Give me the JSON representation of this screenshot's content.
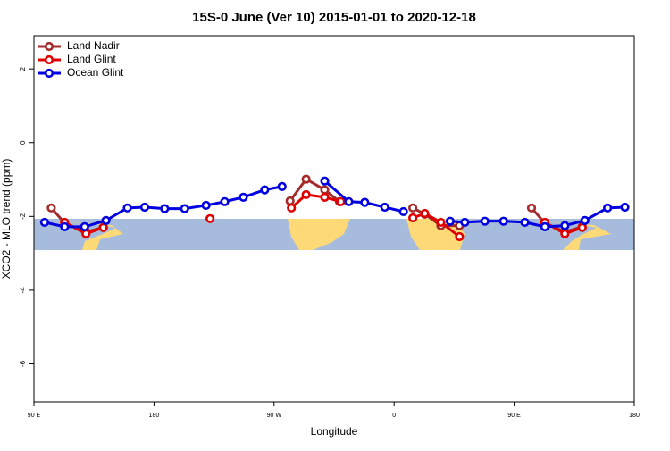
{
  "chart_data": {
    "type": "line",
    "title": "15S-0 June (Ver 10)   2015-01-01 to 2020-12-18",
    "x_label": "Longitude",
    "y_label": "XCO2 - MLO trend (ppm)",
    "xlim": [
      90,
      540
    ],
    "ylim": [
      -7.03,
      2.9
    ],
    "xticks": [
      {
        "value": 90,
        "label": "90 E"
      },
      180,
      {
        "value": 270,
        "label": "90 W"
      },
      {
        "value": 360,
        "label": "0"
      },
      {
        "value": 450,
        "label": "90 E"
      },
      {
        "value": 540,
        "label": "180"
      }
    ],
    "yticks": [
      2,
      0,
      -2,
      -4,
      -6
    ],
    "legend": "top-left",
    "series": [
      {
        "name": "Land Nadir",
        "color": "#a52a2a",
        "x": [
          103,
          113,
          129,
          142,
          null,
          282,
          294,
          308,
          319,
          null,
          374,
          383,
          395,
          409,
          null,
          463,
          473,
          488,
          501
        ],
        "values": [
          -1.77,
          -2.18,
          -2.42,
          -2.3,
          null,
          -1.58,
          -0.99,
          -1.28,
          -1.6,
          null,
          -1.77,
          -1.94,
          -2.25,
          -2.25,
          null,
          -1.77,
          -2.18,
          -2.42,
          -2.28
        ]
      },
      {
        "name": "Land Glint",
        "color": "#e00000",
        "x": [
          113,
          129,
          142,
          null,
          222,
          null,
          283,
          294,
          308,
          320,
          null,
          374,
          383,
          395,
          409,
          null,
          473,
          488,
          501
        ],
        "values": [
          -2.16,
          -2.47,
          -2.3,
          null,
          -2.06,
          null,
          -1.77,
          -1.41,
          -1.48,
          -1.6,
          null,
          -2.04,
          -1.92,
          -2.16,
          -2.55,
          null,
          -2.16,
          -2.47,
          -2.3
        ]
      },
      {
        "name": "Ocean Glint",
        "color": "#0000e0",
        "x": [
          98,
          113,
          128,
          144,
          160,
          173,
          188,
          203,
          219,
          233,
          247,
          263,
          276,
          null,
          308,
          326,
          338,
          353,
          367,
          null,
          402,
          413,
          428,
          442,
          458,
          473,
          488,
          503,
          520,
          533
        ],
        "values": [
          -2.16,
          -2.28,
          -2.28,
          -2.11,
          -1.77,
          -1.75,
          -1.79,
          -1.79,
          -1.7,
          -1.6,
          -1.48,
          -1.28,
          -1.19,
          null,
          -1.04,
          -1.6,
          -1.62,
          -1.75,
          -1.87,
          null,
          -2.13,
          -2.16,
          -2.13,
          -2.13,
          -2.16,
          -2.28,
          -2.25,
          -2.11,
          -1.77,
          -1.75
        ]
      }
    ]
  }
}
